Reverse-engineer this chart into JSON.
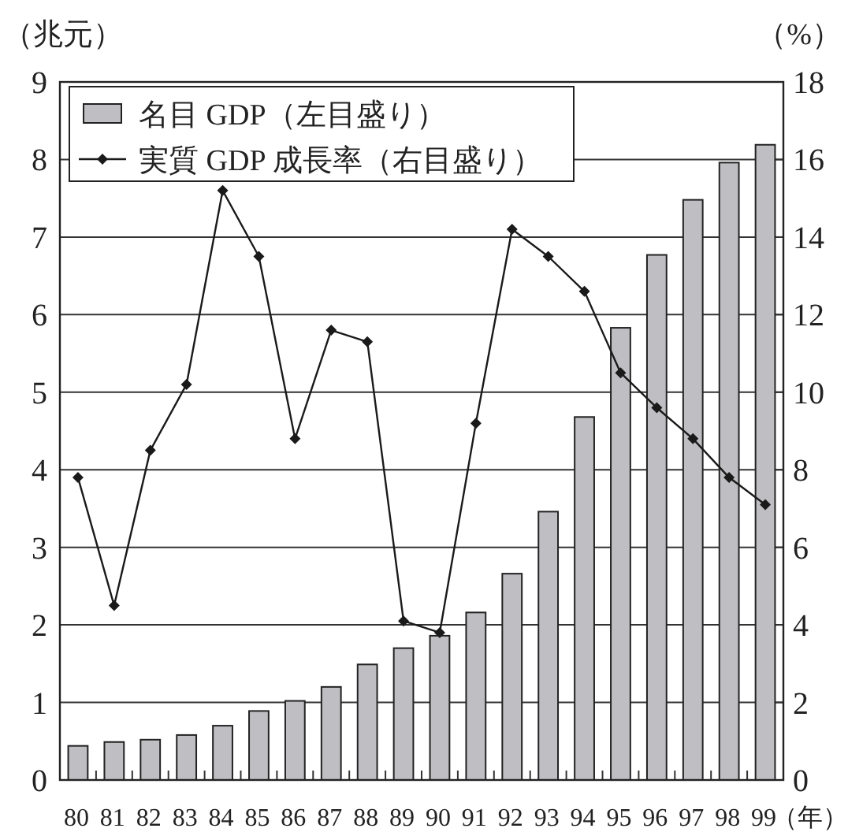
{
  "chart_data": {
    "type": "bar",
    "categories": [
      "80",
      "81",
      "82",
      "83",
      "84",
      "85",
      "86",
      "87",
      "88",
      "89",
      "90",
      "91",
      "92",
      "93",
      "94",
      "95",
      "96",
      "97",
      "98",
      "99"
    ],
    "series": [
      {
        "name": "名目 GDP（左目盛り）",
        "color": "#bfbfc3",
        "values": [
          0.44,
          0.49,
          0.52,
          0.58,
          0.7,
          0.89,
          1.02,
          1.2,
          1.49,
          1.7,
          1.86,
          2.16,
          2.66,
          3.46,
          4.68,
          5.83,
          6.77,
          7.48,
          7.96,
          8.19
        ]
      },
      {
        "name": "実質 GDP 成長率（右目盛り）",
        "type": "line",
        "axis": "y2",
        "color": "#1a1a1a",
        "marker": "diamond",
        "values": [
          7.8,
          4.5,
          8.5,
          10.2,
          15.2,
          13.5,
          8.8,
          11.6,
          11.3,
          4.1,
          3.8,
          9.2,
          14.2,
          13.5,
          12.6,
          10.5,
          9.6,
          8.8,
          7.8,
          7.1
        ]
      }
    ],
    "ylabel": "（兆元）",
    "y2label": "（%）",
    "xlabel": "（年）",
    "ylim": [
      0,
      9
    ],
    "yticks": [
      0,
      1,
      2,
      3,
      4,
      5,
      6,
      7,
      8,
      9
    ],
    "y2lim": [
      0,
      18
    ],
    "y2ticks": [
      0,
      2,
      4,
      6,
      8,
      10,
      12,
      14,
      16,
      18
    ],
    "grid": "y",
    "legend": "top left"
  }
}
